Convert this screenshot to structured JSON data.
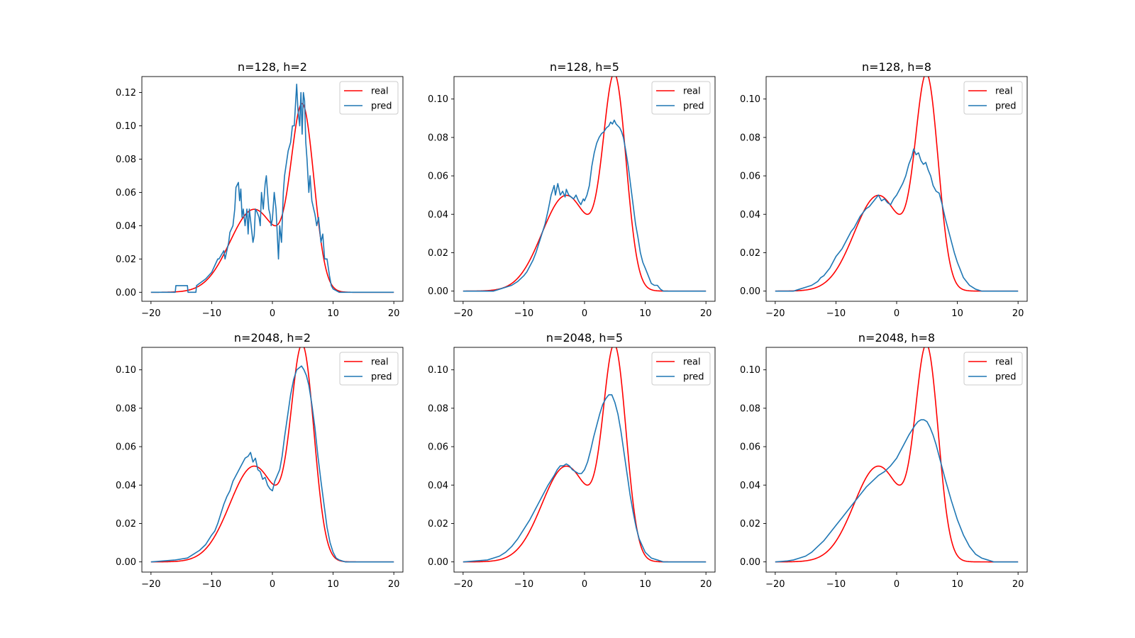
{
  "chart_data": [
    {
      "type": "line",
      "title": "n=128, h=2",
      "xlim": [
        -21.5,
        21.5
      ],
      "ylim": [
        -0.0054,
        0.1296
      ],
      "xticks": [
        -20,
        -10,
        0,
        10,
        20
      ],
      "xtick_labels": [
        "−20",
        "−10",
        "0",
        "10",
        "20"
      ],
      "yticks": [
        0,
        0.02,
        0.04,
        0.06,
        0.08,
        0.1,
        0.12
      ],
      "ytick_labels": [
        "0.00",
        "0.02",
        "0.04",
        "0.06",
        "0.08",
        "0.10",
        "0.12"
      ],
      "grid": false,
      "legend": "top-right",
      "series": [
        {
          "name": "real",
          "color": "#ff0000"
        },
        {
          "name": "pred",
          "color": "#1f77b4",
          "x": [
            -20,
            -16,
            -15.9,
            -14,
            -13.9,
            -12.6,
            -12.5,
            -11,
            -10,
            -9.5,
            -9,
            -8.8,
            -8,
            -7.8,
            -7.2,
            -7,
            -6.5,
            -6.2,
            -6,
            -5.6,
            -5.4,
            -5.2,
            -5,
            -4.8,
            -4.5,
            -4.2,
            -4,
            -3.8,
            -3.5,
            -3.2,
            -3,
            -2.8,
            -2.5,
            -2.2,
            -2,
            -1.8,
            -1.5,
            -1.2,
            -1,
            -0.6,
            -0.4,
            -0.2,
            0,
            0.3,
            0.6,
            1,
            1.2,
            1.5,
            1.8,
            2,
            2.4,
            2.6,
            3,
            3.3,
            3.6,
            4,
            4.2,
            4.5,
            4.7,
            4.9,
            5.1,
            5.3,
            5.5,
            5.7,
            6,
            6.2,
            6.5,
            6.8,
            7,
            7.3,
            7.6,
            8,
            8.3,
            8.6,
            9,
            9.4,
            9.7,
            10,
            10.5,
            11,
            20
          ],
          "y": [
            0,
            0,
            0.004,
            0.004,
            0,
            0,
            0.004,
            0.008,
            0.012,
            0.016,
            0.02,
            0.02,
            0.025,
            0.02,
            0.03,
            0.036,
            0.04,
            0.05,
            0.063,
            0.066,
            0.055,
            0.062,
            0.045,
            0.05,
            0.04,
            0.05,
            0.035,
            0.05,
            0.04,
            0.03,
            0.034,
            0.05,
            0.048,
            0.045,
            0.04,
            0.06,
            0.05,
            0.065,
            0.07,
            0.05,
            0.047,
            0.04,
            0.044,
            0.06,
            0.05,
            0.02,
            0.04,
            0.03,
            0.06,
            0.07,
            0.08,
            0.085,
            0.09,
            0.1,
            0.1,
            0.125,
            0.11,
            0.1,
            0.12,
            0.095,
            0.12,
            0.115,
            0.09,
            0.08,
            0.06,
            0.07,
            0.055,
            0.05,
            0.047,
            0.04,
            0.045,
            0.03,
            0.035,
            0.02,
            0.02,
            0.01,
            0.004,
            0.002,
            0.001,
            0,
            0
          ]
        }
      ]
    },
    {
      "type": "line",
      "title": "n=128, h=5",
      "xlim": [
        -21.5,
        21.5
      ],
      "ylim": [
        -0.0053,
        0.1117
      ],
      "xticks": [
        -20,
        -10,
        0,
        10,
        20
      ],
      "xtick_labels": [
        "−20",
        "−10",
        "0",
        "10",
        "20"
      ],
      "yticks": [
        0,
        0.02,
        0.04,
        0.06,
        0.08,
        0.1
      ],
      "ytick_labels": [
        "0.00",
        "0.02",
        "0.04",
        "0.06",
        "0.08",
        "0.10"
      ],
      "grid": false,
      "legend": "top-right",
      "series": [
        {
          "name": "real",
          "color": "#ff0000"
        },
        {
          "name": "pred",
          "color": "#1f77b4",
          "x": [
            -20,
            -15,
            -14,
            -13,
            -12,
            -11,
            -10,
            -9.5,
            -9,
            -8.5,
            -8,
            -7.5,
            -7,
            -6.5,
            -6,
            -5.5,
            -5.2,
            -5,
            -4.8,
            -4.4,
            -4,
            -3.6,
            -3.2,
            -3,
            -2.6,
            -2.2,
            -1.8,
            -1.4,
            -1,
            -0.6,
            -0.2,
            0,
            0.4,
            0.8,
            1.2,
            1.6,
            2,
            2.4,
            2.8,
            3.2,
            3.6,
            4,
            4.3,
            4.6,
            4.9,
            5.2,
            5.5,
            5.8,
            6.1,
            6.4,
            6.8,
            7.2,
            7.6,
            8,
            8.4,
            8.8,
            9.2,
            9.6,
            10,
            10.5,
            11,
            11.5,
            12,
            12.5,
            13,
            20
          ],
          "y": [
            0,
            0,
            0.001,
            0.002,
            0.003,
            0.005,
            0.008,
            0.01,
            0.013,
            0.016,
            0.02,
            0.025,
            0.03,
            0.035,
            0.042,
            0.05,
            0.053,
            0.055,
            0.05,
            0.056,
            0.05,
            0.052,
            0.049,
            0.053,
            0.05,
            0.049,
            0.048,
            0.05,
            0.047,
            0.045,
            0.048,
            0.047,
            0.05,
            0.055,
            0.065,
            0.072,
            0.077,
            0.08,
            0.082,
            0.083,
            0.085,
            0.086,
            0.088,
            0.087,
            0.089,
            0.087,
            0.086,
            0.085,
            0.083,
            0.08,
            0.073,
            0.065,
            0.055,
            0.045,
            0.035,
            0.028,
            0.02,
            0.015,
            0.012,
            0.008,
            0.004,
            0.003,
            0.003,
            0.001,
            0,
            0
          ]
        }
      ]
    },
    {
      "type": "line",
      "title": "n=128, h=8",
      "xlim": [
        -21.5,
        21.5
      ],
      "ylim": [
        -0.0053,
        0.1117
      ],
      "xticks": [
        -20,
        -10,
        0,
        10,
        20
      ],
      "xtick_labels": [
        "−20",
        "−10",
        "0",
        "10",
        "20"
      ],
      "yticks": [
        0,
        0.02,
        0.04,
        0.06,
        0.08,
        0.1
      ],
      "ytick_labels": [
        "0.00",
        "0.02",
        "0.04",
        "0.06",
        "0.08",
        "0.10"
      ],
      "grid": false,
      "legend": "top-right",
      "series": [
        {
          "name": "real",
          "color": "#ff0000"
        },
        {
          "name": "pred",
          "color": "#1f77b4",
          "x": [
            -20,
            -17,
            -16,
            -15,
            -14,
            -13,
            -12.5,
            -12,
            -11.5,
            -11,
            -10.5,
            -10,
            -9.5,
            -9,
            -8.5,
            -8,
            -7.5,
            -7,
            -6.5,
            -6,
            -5.5,
            -5,
            -4.5,
            -4,
            -3.5,
            -3,
            -2.5,
            -2,
            -1.5,
            -1,
            -0.5,
            0,
            0.5,
            1,
            1.5,
            2,
            2.5,
            2.8,
            3.2,
            3.6,
            4,
            4.4,
            4.8,
            5.2,
            5.6,
            6,
            6.5,
            7,
            7.5,
            8,
            8.5,
            9,
            9.5,
            10,
            10.5,
            11,
            11.5,
            12,
            12.5,
            13,
            14,
            20
          ],
          "y": [
            0,
            0,
            0.001,
            0.002,
            0.003,
            0.005,
            0.007,
            0.008,
            0.01,
            0.012,
            0.015,
            0.018,
            0.02,
            0.022,
            0.025,
            0.028,
            0.031,
            0.033,
            0.036,
            0.039,
            0.041,
            0.043,
            0.044,
            0.046,
            0.048,
            0.05,
            0.047,
            0.048,
            0.046,
            0.045,
            0.048,
            0.05,
            0.053,
            0.056,
            0.06,
            0.066,
            0.07,
            0.074,
            0.071,
            0.072,
            0.068,
            0.066,
            0.067,
            0.063,
            0.06,
            0.055,
            0.052,
            0.051,
            0.045,
            0.038,
            0.032,
            0.026,
            0.02,
            0.015,
            0.011,
            0.007,
            0.005,
            0.003,
            0.002,
            0.001,
            0,
            0
          ]
        }
      ]
    },
    {
      "type": "line",
      "title": "n=2048, h=2",
      "xlim": [
        -21.5,
        21.5
      ],
      "ylim": [
        -0.0053,
        0.1117
      ],
      "xticks": [
        -20,
        -10,
        0,
        10,
        20
      ],
      "xtick_labels": [
        "−20",
        "−10",
        "0",
        "10",
        "20"
      ],
      "yticks": [
        0,
        0.02,
        0.04,
        0.06,
        0.08,
        0.1
      ],
      "ytick_labels": [
        "0.00",
        "0.02",
        "0.04",
        "0.06",
        "0.08",
        "0.10"
      ],
      "grid": false,
      "legend": "top-right",
      "series": [
        {
          "name": "real",
          "color": "#ff0000"
        },
        {
          "name": "pred",
          "color": "#1f77b4",
          "x": [
            -20,
            -16,
            -14,
            -13,
            -12,
            -11,
            -10,
            -9.5,
            -9,
            -8.5,
            -8,
            -7.5,
            -7,
            -6.5,
            -6,
            -5.5,
            -5,
            -4.5,
            -4,
            -3.6,
            -3.2,
            -2.8,
            -2.4,
            -2,
            -1.6,
            -1.2,
            -0.8,
            -0.4,
            0,
            0.4,
            0.8,
            1.2,
            1.6,
            2,
            2.5,
            3,
            3.5,
            4,
            4.4,
            4.8,
            5.2,
            5.6,
            6,
            6.5,
            7,
            7.5,
            8,
            8.5,
            9,
            9.5,
            10,
            10.5,
            11,
            12,
            20
          ],
          "y": [
            0,
            0.001,
            0.002,
            0.004,
            0.006,
            0.009,
            0.014,
            0.016,
            0.02,
            0.025,
            0.03,
            0.034,
            0.037,
            0.042,
            0.045,
            0.048,
            0.051,
            0.054,
            0.055,
            0.057,
            0.052,
            0.054,
            0.048,
            0.047,
            0.043,
            0.044,
            0.04,
            0.038,
            0.037,
            0.042,
            0.045,
            0.048,
            0.055,
            0.065,
            0.076,
            0.087,
            0.095,
            0.1,
            0.101,
            0.102,
            0.1,
            0.097,
            0.092,
            0.082,
            0.07,
            0.055,
            0.042,
            0.03,
            0.018,
            0.01,
            0.005,
            0.002,
            0.001,
            0,
            0
          ]
        }
      ]
    },
    {
      "type": "line",
      "title": "n=2048, h=5",
      "xlim": [
        -21.5,
        21.5
      ],
      "ylim": [
        -0.0053,
        0.1117
      ],
      "xticks": [
        -20,
        -10,
        0,
        10,
        20
      ],
      "xtick_labels": [
        "−20",
        "−10",
        "0",
        "10",
        "20"
      ],
      "yticks": [
        0,
        0.02,
        0.04,
        0.06,
        0.08,
        0.1
      ],
      "ytick_labels": [
        "0.00",
        "0.02",
        "0.04",
        "0.06",
        "0.08",
        "0.10"
      ],
      "grid": false,
      "legend": "top-right",
      "series": [
        {
          "name": "real",
          "color": "#ff0000"
        },
        {
          "name": "pred",
          "color": "#1f77b4",
          "x": [
            -20,
            -18,
            -16,
            -15,
            -14,
            -13,
            -12,
            -11,
            -10,
            -9,
            -8,
            -7,
            -6,
            -5,
            -4.5,
            -4,
            -3.5,
            -3,
            -2.5,
            -2,
            -1.5,
            -1,
            -0.5,
            0,
            0.5,
            1,
            1.5,
            2,
            2.5,
            3,
            3.5,
            4,
            4.5,
            5,
            5.5,
            6,
            6.5,
            7,
            7.5,
            8,
            8.5,
            9,
            10,
            11,
            12,
            13,
            20
          ],
          "y": [
            0,
            0.0005,
            0.001,
            0.002,
            0.003,
            0.005,
            0.008,
            0.012,
            0.017,
            0.022,
            0.028,
            0.034,
            0.04,
            0.045,
            0.048,
            0.05,
            0.05,
            0.051,
            0.05,
            0.048,
            0.047,
            0.046,
            0.046,
            0.048,
            0.052,
            0.058,
            0.065,
            0.071,
            0.077,
            0.082,
            0.085,
            0.087,
            0.087,
            0.083,
            0.077,
            0.068,
            0.057,
            0.046,
            0.035,
            0.026,
            0.018,
            0.012,
            0.005,
            0.002,
            0.001,
            0,
            0
          ]
        }
      ]
    },
    {
      "type": "line",
      "title": "n=2048, h=8",
      "xlim": [
        -21.5,
        21.5
      ],
      "ylim": [
        -0.0053,
        0.1117
      ],
      "xticks": [
        -20,
        -10,
        0,
        10,
        20
      ],
      "xtick_labels": [
        "−20",
        "−10",
        "0",
        "10",
        "20"
      ],
      "yticks": [
        0,
        0.02,
        0.04,
        0.06,
        0.08,
        0.1
      ],
      "ytick_labels": [
        "0.00",
        "0.02",
        "0.04",
        "0.06",
        "0.08",
        "0.10"
      ],
      "grid": false,
      "legend": "top-right",
      "series": [
        {
          "name": "real",
          "color": "#ff0000"
        },
        {
          "name": "pred",
          "color": "#1f77b4",
          "x": [
            -20,
            -18,
            -17,
            -16,
            -15,
            -14,
            -13,
            -12,
            -11,
            -10,
            -9,
            -8,
            -7,
            -6,
            -5,
            -4,
            -3,
            -2,
            -1,
            0,
            1,
            2,
            3,
            3.5,
            4,
            4.5,
            5,
            5.5,
            6,
            6.5,
            7,
            7.5,
            8,
            9,
            10,
            11,
            12,
            13,
            14,
            15,
            16,
            20
          ],
          "y": [
            0,
            0.0005,
            0.001,
            0.002,
            0.003,
            0.005,
            0.008,
            0.011,
            0.015,
            0.019,
            0.023,
            0.027,
            0.031,
            0.035,
            0.039,
            0.042,
            0.045,
            0.047,
            0.05,
            0.054,
            0.06,
            0.066,
            0.071,
            0.073,
            0.074,
            0.074,
            0.073,
            0.07,
            0.066,
            0.061,
            0.055,
            0.049,
            0.043,
            0.032,
            0.022,
            0.014,
            0.008,
            0.004,
            0.002,
            0.001,
            0,
            0
          ]
        }
      ]
    }
  ]
}
